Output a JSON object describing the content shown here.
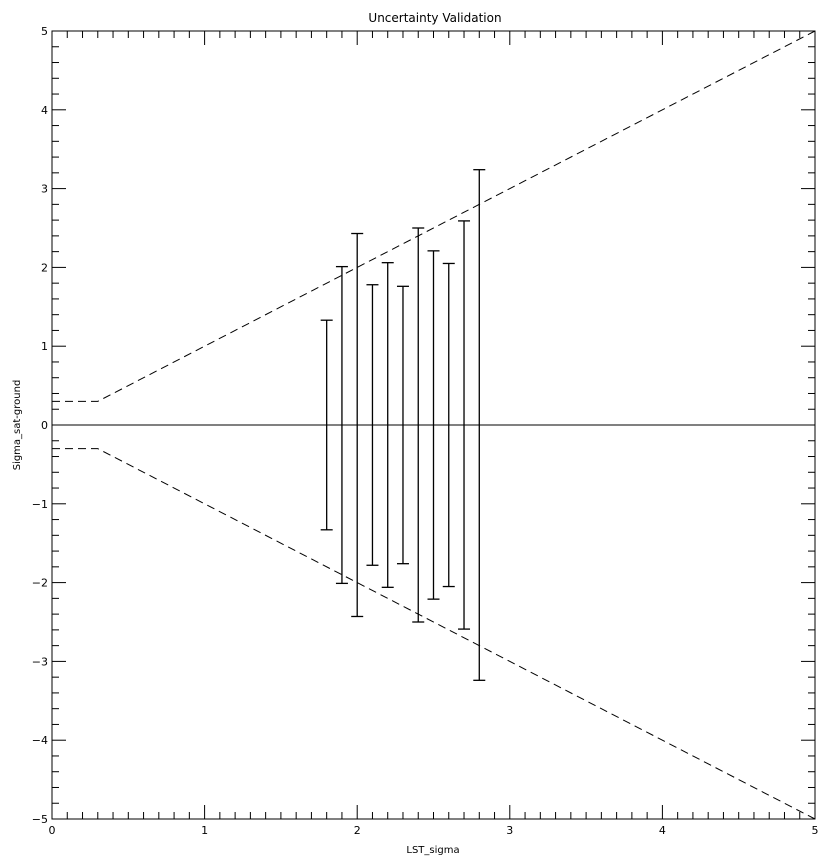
{
  "chart_data": {
    "type": "scatter",
    "title": "Uncertainty Validation",
    "xlabel": "LST_sigma",
    "ylabel": "Sigma_sat-ground",
    "xlim": [
      0,
      5
    ],
    "ylim": [
      -5,
      5
    ],
    "x_ticks": [
      "0",
      "1",
      "2",
      "3",
      "4",
      "5"
    ],
    "y_ticks": [
      "-5",
      "-4",
      "-3",
      "-2",
      "-1",
      "0",
      "1",
      "2",
      "3",
      "4",
      "5"
    ],
    "grid": false,
    "series": [
      {
        "style": "errorbar",
        "x": [
          1.8,
          1.9,
          2.0,
          2.1,
          2.2,
          2.3,
          2.4,
          2.5,
          2.6,
          2.7,
          2.8
        ],
        "y": [
          0,
          0,
          0,
          0,
          0,
          0,
          0,
          0,
          0,
          0,
          0
        ],
        "yerr": [
          1.33,
          2.01,
          2.43,
          1.78,
          2.06,
          1.76,
          2.5,
          2.21,
          2.05,
          2.59,
          3.24
        ]
      },
      {
        "style": "dashed",
        "x": [
          0.0,
          0.3,
          5.0
        ],
        "y": [
          0.3,
          0.3,
          5.0
        ]
      },
      {
        "style": "dashed",
        "x": [
          0.0,
          0.3,
          5.0
        ],
        "y": [
          -0.3,
          -0.3,
          -5.0
        ]
      },
      {
        "style": "solid",
        "x": [
          0,
          5
        ],
        "y": [
          0,
          0
        ]
      }
    ]
  }
}
